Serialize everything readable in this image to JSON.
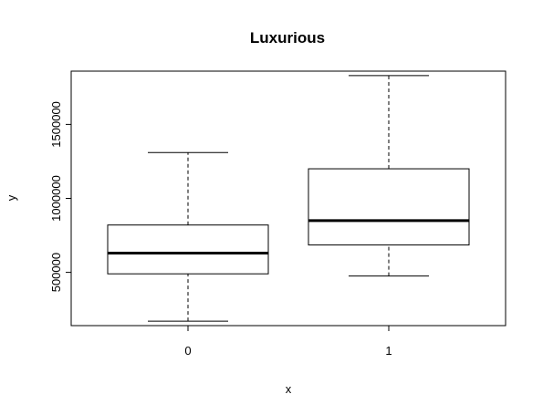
{
  "chart_data": {
    "type": "boxplot",
    "title": "Luxurious",
    "xlabel": "x",
    "ylabel": "y",
    "categories": [
      "0",
      "1"
    ],
    "boxes": [
      {
        "category": "0",
        "whisker_low": 170000,
        "q1": 490000,
        "median": 630000,
        "q3": 820000,
        "whisker_high": 1310000
      },
      {
        "category": "1",
        "whisker_low": 475000,
        "q1": 685000,
        "median": 850000,
        "q3": 1200000,
        "whisker_high": 1830000
      }
    ],
    "y_ticks": [
      500000,
      1000000,
      1500000
    ],
    "y_tick_labels": [
      "500000",
      "1000000",
      "1500000"
    ],
    "ylim": [
      140000,
      1860000
    ],
    "grid": false,
    "legend": "none"
  }
}
